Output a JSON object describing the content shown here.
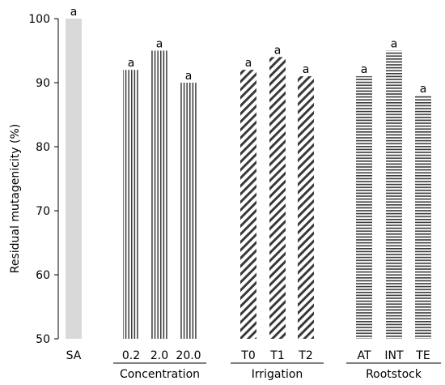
{
  "chart_data": {
    "type": "bar",
    "ylabel": "Residual mutagenicity (%)",
    "ylim": [
      50,
      100
    ],
    "yticks": [
      50,
      60,
      70,
      80,
      90,
      100
    ],
    "grid": false,
    "legend": "none",
    "categories": [
      "SA",
      "0.2",
      "2.0",
      "20.0",
      "T0",
      "T1",
      "T2",
      "AT",
      "INT",
      "TE"
    ],
    "values": [
      100,
      92,
      95,
      90,
      92,
      94,
      91,
      91,
      95,
      88
    ],
    "significance_letters": [
      "a",
      "a",
      "a",
      "a",
      "a",
      "a",
      "a",
      "a",
      "a",
      "a"
    ],
    "bar_patterns": [
      "solid-grey",
      "vertical",
      "vertical",
      "vertical",
      "diagonal",
      "diagonal",
      "diagonal",
      "horizontal",
      "horizontal",
      "horizontal"
    ],
    "groups": [
      {
        "label": "Concentration",
        "members": [
          "0.2",
          "2.0",
          "20.0"
        ]
      },
      {
        "label": "Irrigation",
        "members": [
          "T0",
          "T1",
          "T2"
        ]
      },
      {
        "label": "Rootstock",
        "members": [
          "AT",
          "INT",
          "TE"
        ]
      }
    ],
    "colors": {
      "control": "#d9d9d9",
      "hatch": "#3a3a3a",
      "axis": "#000000"
    }
  }
}
